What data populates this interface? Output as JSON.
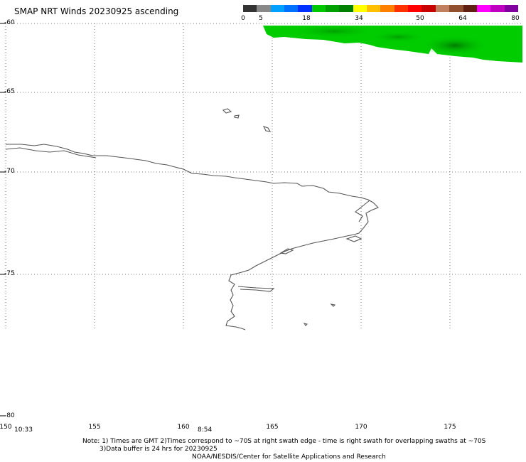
{
  "title": "SMAP NRT Winds 20230925 ascending",
  "colorbar": {
    "labels": [
      {
        "text": "0",
        "value": 0
      },
      {
        "text": "5",
        "value": 5
      },
      {
        "text": "18",
        "value": 18
      },
      {
        "text": "34",
        "value": 34
      },
      {
        "text": "50",
        "value": 50
      },
      {
        "text": "64",
        "value": 64
      },
      {
        "text": "80",
        "value": 80
      }
    ],
    "colors": [
      "#333333",
      "#888888",
      "#00a0ff",
      "#0070ff",
      "#0030ff",
      "#00c800",
      "#00a000",
      "#008000",
      "#ffff00",
      "#ffc000",
      "#ff8000",
      "#ff3000",
      "#ff0000",
      "#c80000",
      "#c08060",
      "#905030",
      "#602010",
      "#ff00ff",
      "#c000c0",
      "#8000a0"
    ]
  },
  "axes": {
    "lat_labels": [
      {
        "text": "-60",
        "value": -60
      },
      {
        "text": "-65",
        "value": -65
      },
      {
        "text": "-70",
        "value": -70
      },
      {
        "text": "-75",
        "value": -75
      },
      {
        "text": "-80",
        "value": -80
      }
    ],
    "lon_labels": [
      {
        "text": "150",
        "value": 150
      },
      {
        "text": "155",
        "value": 155
      },
      {
        "text": "160",
        "value": 160
      },
      {
        "text": "165",
        "value": 165
      },
      {
        "text": "170",
        "value": 170
      },
      {
        "text": "175",
        "value": 175
      }
    ]
  },
  "times": [
    {
      "text": "10:33"
    },
    {
      "text": "8:54"
    }
  ],
  "notes": {
    "line1": "Note: 1) Times are GMT 2)Times correspond to ~70S at right swath edge - time is right swath for overlapping swaths at ~70S",
    "line2": "3)Data buffer is 24 hrs for 20230925",
    "line3": "NOAA/NESDIS/Center for Satellite Applications and Research"
  },
  "colors": {
    "swath_green": "#00cc00",
    "swath_dark": "#008800",
    "coast": "#555555",
    "grid": "#777777"
  }
}
